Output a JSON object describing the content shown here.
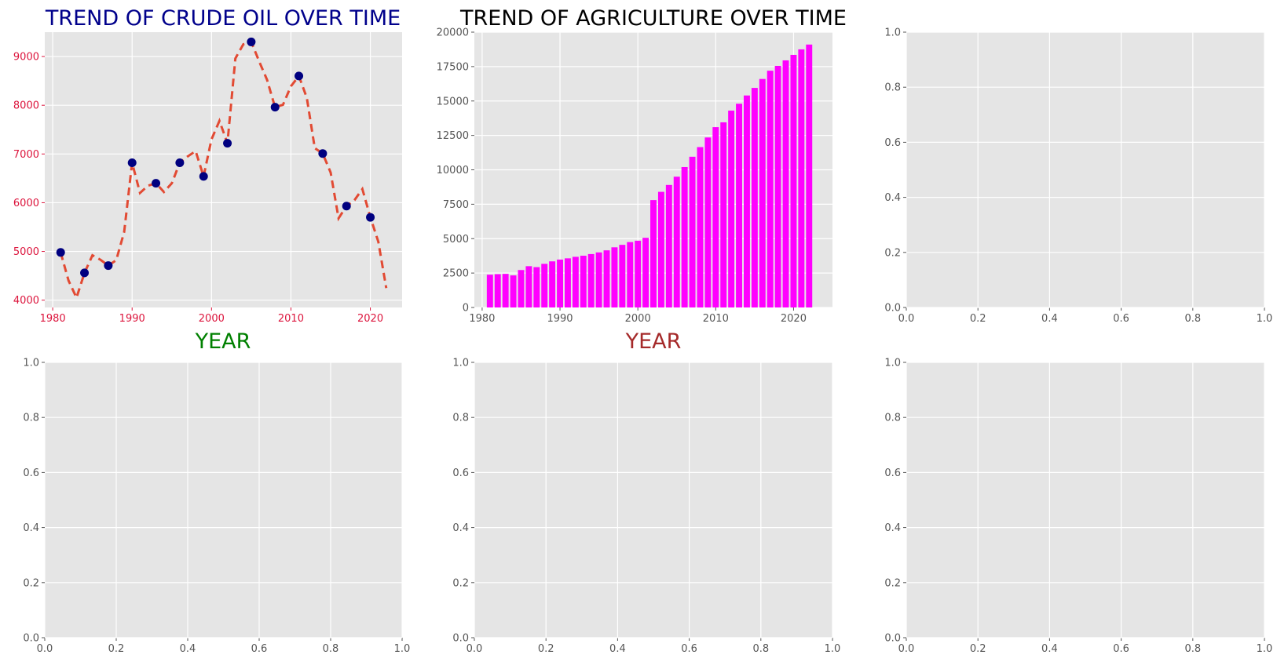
{
  "colors": {
    "panel_background": "#e5e5e5",
    "grid": "#ffffff",
    "tick_default": "#555555",
    "crude_title": "#00008b",
    "crude_ticks": "#dc143c",
    "crude_xlabel": "#008000",
    "crude_line": "#e24a33",
    "crude_markers": "#000080",
    "agri_title": "#000000",
    "agri_xlabel": "#a52a2a",
    "agri_bars": "#ff00ff"
  },
  "chart_data": [
    {
      "type": "line",
      "title": "TREND OF CRUDE OIL OVER TIME",
      "xlabel": "YEAR",
      "ylabel": "",
      "line_style": "dashed",
      "xlim": [
        1979,
        2024
      ],
      "ylim": [
        3850,
        9500
      ],
      "xticks": [
        1980,
        1990,
        2000,
        2010,
        2020
      ],
      "yticks": [
        4000,
        5000,
        6000,
        7000,
        8000,
        9000
      ],
      "x": [
        1981,
        1982,
        1983,
        1984,
        1985,
        1986,
        1987,
        1988,
        1989,
        1990,
        1991,
        1992,
        1993,
        1994,
        1995,
        1996,
        1997,
        1998,
        1999,
        2000,
        2001,
        2002,
        2003,
        2004,
        2005,
        2006,
        2007,
        2008,
        2009,
        2010,
        2011,
        2012,
        2013,
        2014,
        2015,
        2016,
        2017,
        2018,
        2019,
        2020,
        2021,
        2022
      ],
      "y": [
        4980,
        4400,
        4050,
        4560,
        4920,
        4830,
        4710,
        4820,
        5400,
        6820,
        6200,
        6350,
        6400,
        6220,
        6400,
        6820,
        6950,
        7060,
        6540,
        7300,
        7680,
        7220,
        8960,
        9250,
        9300,
        8900,
        8520,
        7960,
        8010,
        8390,
        8600,
        8150,
        7120,
        7010,
        6620,
        5680,
        5930,
        6050,
        6280,
        5700,
        5200,
        4250
      ],
      "markers": {
        "x": [
          1981,
          1984,
          1987,
          1990,
          1993,
          1996,
          1999,
          2002,
          2005,
          2008,
          2011,
          2014,
          2017,
          2020
        ],
        "y": [
          4980,
          4560,
          4710,
          6820,
          6400,
          6820,
          6540,
          7220,
          9300,
          7960,
          8600,
          7010,
          5930,
          5700
        ]
      },
      "grid": true
    },
    {
      "type": "bar",
      "title": "TREND OF AGRICULTURE OVER TIME",
      "xlabel": "YEAR",
      "ylabel": "",
      "xlim": [
        1979,
        2025
      ],
      "ylim": [
        0,
        20000
      ],
      "xticks": [
        1980,
        1990,
        2000,
        2010,
        2020
      ],
      "yticks": [
        0,
        2500,
        5000,
        7500,
        10000,
        12500,
        15000,
        17500,
        20000
      ],
      "categories": [
        1981,
        1982,
        1983,
        1984,
        1985,
        1986,
        1987,
        1988,
        1989,
        1990,
        1991,
        1992,
        1993,
        1994,
        1995,
        1996,
        1997,
        1998,
        1999,
        2000,
        2001,
        2002,
        2003,
        2004,
        2005,
        2006,
        2007,
        2008,
        2009,
        2010,
        2011,
        2012,
        2013,
        2014,
        2015,
        2016,
        2017,
        2018,
        2019,
        2020,
        2021,
        2022
      ],
      "values": [
        2380,
        2420,
        2440,
        2330,
        2720,
        3000,
        2930,
        3170,
        3350,
        3480,
        3570,
        3680,
        3760,
        3880,
        4000,
        4150,
        4370,
        4550,
        4750,
        4850,
        5060,
        7800,
        8400,
        8900,
        9500,
        10200,
        10950,
        11650,
        12350,
        13100,
        13450,
        14300,
        14800,
        15400,
        15950,
        16600,
        17200,
        17550,
        17950,
        18350,
        18750,
        19100
      ],
      "grid": true
    }
  ],
  "empty_axes": [
    {
      "id": "r1c3",
      "xticks": [
        "0.0",
        "0.2",
        "0.4",
        "0.6",
        "0.8",
        "1.0"
      ],
      "yticks": [
        "0.0",
        "0.2",
        "0.4",
        "0.6",
        "0.8",
        "1.0"
      ]
    },
    {
      "id": "r2c1",
      "xticks": [
        "0.0",
        "0.2",
        "0.4",
        "0.6",
        "0.8",
        "1.0"
      ],
      "yticks": [
        "0.0",
        "0.2",
        "0.4",
        "0.6",
        "0.8",
        "1.0"
      ]
    },
    {
      "id": "r2c2",
      "xticks": [
        "0.0",
        "0.2",
        "0.4",
        "0.6",
        "0.8",
        "1.0"
      ],
      "yticks": [
        "0.0",
        "0.2",
        "0.4",
        "0.6",
        "0.8",
        "1.0"
      ]
    },
    {
      "id": "r2c3",
      "xticks": [
        "0.0",
        "0.2",
        "0.4",
        "0.6",
        "0.8",
        "1.0"
      ],
      "yticks": [
        "0.0",
        "0.2",
        "0.4",
        "0.6",
        "0.8",
        "1.0"
      ]
    }
  ]
}
